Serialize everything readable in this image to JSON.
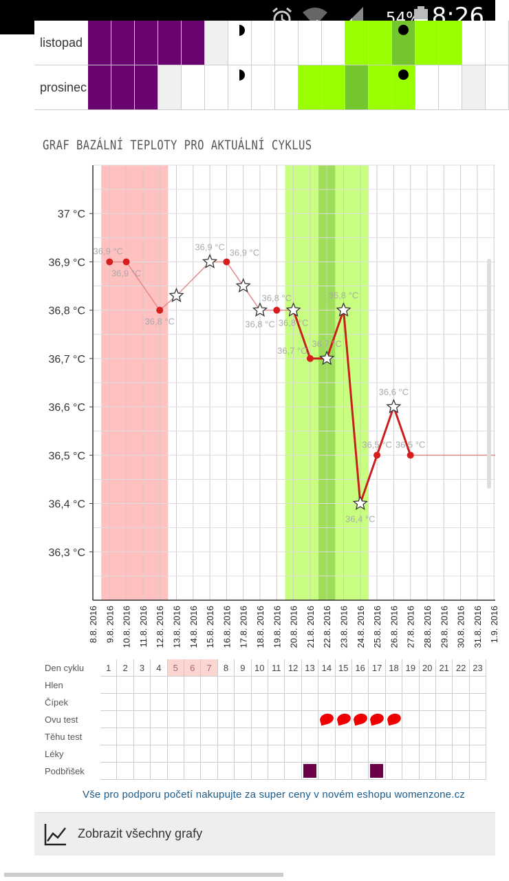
{
  "status_bar": {
    "battery": "54%",
    "time": "8:26",
    "icons": [
      "alarm-icon",
      "wifi-icon",
      "signal-icon",
      "battery-icon"
    ]
  },
  "calendar": {
    "rows": [
      {
        "label": "listopad",
        "cells": [
          "purple",
          "purple",
          "purple",
          "purple",
          "purple",
          "grey",
          "halfmoon",
          "white",
          "white",
          "white",
          "white",
          "green",
          "green",
          "dark-green-dot",
          "green",
          "green",
          "white",
          "white"
        ]
      },
      {
        "label": "prosinec",
        "cells": [
          "purple",
          "purple",
          "purple",
          "grey",
          "white",
          "white",
          "halfmoon",
          "white",
          "white",
          "green",
          "green",
          "dark-green",
          "green",
          "green-dot",
          "white",
          "white",
          "grey",
          "white"
        ]
      }
    ],
    "colors": {
      "purple": "#6a0570",
      "green": "#99ff00",
      "dark-green": "#74c52e",
      "grey": "#f0f0f0",
      "white": "#ffffff"
    }
  },
  "chart_title": "GRAF BAZÁLNÍ TEPLOTY PRO AKTUÁLNÍ CYKLUS",
  "chart_data": {
    "type": "line",
    "yticks": [
      "37 °C",
      "36,9 °C",
      "36,8 °C",
      "36,7 °C",
      "36,6 °C",
      "36,5 °C",
      "36,4 °C",
      "36,3 °C"
    ],
    "ytick_values": [
      37.0,
      36.9,
      36.8,
      36.7,
      36.6,
      36.5,
      36.4,
      36.3
    ],
    "ylim": [
      36.2,
      37.1
    ],
    "x": [
      "8.8. 2016",
      "9.8. 2016",
      "10.8. 2016",
      "11.8. 2016",
      "12.8. 2016",
      "13.8. 2016",
      "14.8. 2016",
      "15.8. 2016",
      "16.8. 2016",
      "17.8. 2016",
      "18.8. 2016",
      "19.8. 2016",
      "20.8. 2016",
      "21.8. 2016",
      "22.8. 2016",
      "23.8. 2016",
      "24.8. 2016",
      "25.8. 2016",
      "26.8. 2016",
      "27.8. 2016",
      "28.8. 2016",
      "29.8. 2016",
      "30.8. 2016",
      "31.8. 2016",
      "1.9. 2016"
    ],
    "points": [
      {
        "day": 1,
        "value": 36.9,
        "marker": "dot",
        "label": "36,9 °C"
      },
      {
        "day": 2,
        "value": 36.9,
        "marker": "dot",
        "label": "36,9 °C"
      },
      {
        "day": 4,
        "value": 36.8,
        "marker": "dot",
        "label": "36,8 °C"
      },
      {
        "day": 5,
        "value": 36.83,
        "marker": "star",
        "label": ""
      },
      {
        "day": 7,
        "value": 36.9,
        "marker": "star",
        "label": "36,9 °C"
      },
      {
        "day": 8,
        "value": 36.9,
        "marker": "dot",
        "label": "36,9 °C"
      },
      {
        "day": 9,
        "value": 36.85,
        "marker": "star",
        "label": ""
      },
      {
        "day": 10,
        "value": 36.8,
        "marker": "star",
        "label": "36,8 °C"
      },
      {
        "day": 11,
        "value": 36.8,
        "marker": "dot",
        "label": "36,8 °C"
      },
      {
        "day": 12,
        "value": 36.8,
        "marker": "star",
        "label": "36,8 °C"
      },
      {
        "day": 13,
        "value": 36.7,
        "marker": "dot",
        "label": "36,7 °C"
      },
      {
        "day": 14,
        "value": 36.7,
        "marker": "star",
        "label": "36,7 °C"
      },
      {
        "day": 15,
        "value": 36.8,
        "marker": "star",
        "label": "36,8 °C"
      },
      {
        "day": 16,
        "value": 36.4,
        "marker": "star",
        "label": "36,4 °C"
      },
      {
        "day": 17,
        "value": 36.5,
        "marker": "dot",
        "label": "36,5 °C"
      },
      {
        "day": 18,
        "value": 36.6,
        "marker": "star",
        "label": "36,6 °C"
      },
      {
        "day": 19,
        "value": 36.5,
        "marker": "dot",
        "label": "36,5 °C"
      }
    ],
    "flat_line_after": {
      "from_day": 19,
      "value": 36.5
    },
    "bands": [
      {
        "from_day": 0.5,
        "to_day": 4.5,
        "color": "#ffc0c0"
      },
      {
        "from_day": 11.5,
        "to_day": 16.5,
        "color": "#c8ff80"
      },
      {
        "from_day": 13.5,
        "to_day": 14.5,
        "color": "#9fdc5a"
      }
    ],
    "line_color": "#d62020",
    "grid": true
  },
  "grid_table": {
    "header_label": "Den cyklu",
    "days": [
      "1",
      "2",
      "3",
      "4",
      "5",
      "6",
      "7",
      "8",
      "9",
      "10",
      "11",
      "12",
      "13",
      "14",
      "15",
      "16",
      "17",
      "18",
      "19",
      "20",
      "21",
      "22",
      "23"
    ],
    "highlight_days": [
      5,
      6,
      7
    ],
    "rows": [
      {
        "label": "Hlen",
        "marks": []
      },
      {
        "label": "Čípek",
        "marks": []
      },
      {
        "label": "Ovu test",
        "marks": [
          14,
          15,
          16,
          17,
          18
        ],
        "mark_type": "drop"
      },
      {
        "label": "Těhu test",
        "marks": []
      },
      {
        "label": "Léky",
        "marks": []
      },
      {
        "label": "Podbřišek",
        "marks": [
          13,
          17
        ],
        "mark_type": "square"
      }
    ]
  },
  "ad_text": "Vše pro podporu početí nakupujte za super ceny v novém eshopu womenzone.cz",
  "show_graphs_label": "Zobrazit všechny grafy"
}
